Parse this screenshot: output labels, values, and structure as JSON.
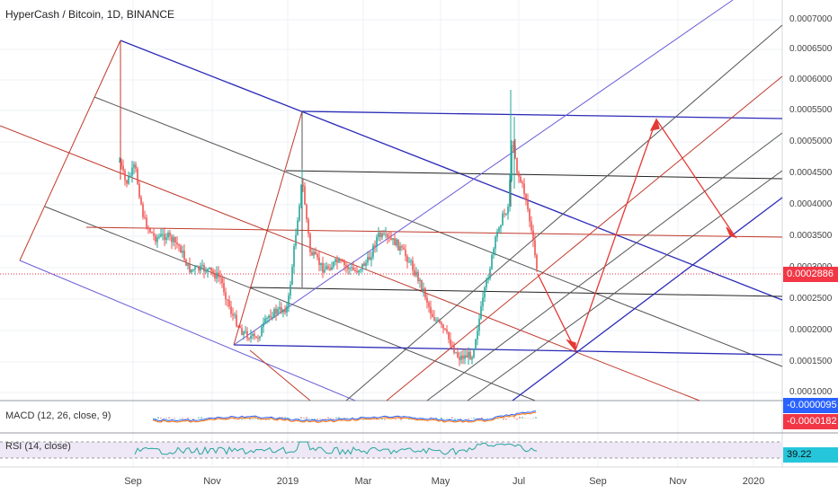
{
  "header": {
    "title": "HyperCash / Bitcoin, 1D, BINANCE"
  },
  "price_axis": {
    "ticks": [
      "0.0007000",
      "0.0006500",
      "0.0006000",
      "0.0005500",
      "0.0005000",
      "0.0004500",
      "0.0004000",
      "0.0003500",
      "0.0003000",
      "0.0002500",
      "0.0002000",
      "0.0001500",
      "0.0001000"
    ],
    "last_price": "0.0002886",
    "last_price_color": "#f23645"
  },
  "time_axis": {
    "ticks": [
      "Sep",
      "Nov",
      "2019",
      "Mar",
      "May",
      "Jul",
      "Sep",
      "Nov",
      "2020"
    ]
  },
  "macd": {
    "label": "MACD (12, 26, close, 9)",
    "value1": "-0.0000095",
    "value2": "-0.0000182",
    "color1": "#2962ff",
    "color2": "#f23645"
  },
  "rsi": {
    "label": "RSI (14, close)",
    "value": "39.22",
    "color": "#26c6da"
  },
  "chart_data": {
    "type": "candlestick",
    "title": "HyperCash / Bitcoin, 1D, BINANCE",
    "x_ticks": [
      "Sep",
      "Nov",
      "2019",
      "Mar",
      "May",
      "Jul",
      "Sep",
      "Nov",
      "2020"
    ],
    "y_range": [
      0.0001,
      0.0007
    ],
    "last_price": 0.0002886,
    "key_levels": [
      0.000671,
      0.000553,
      0.000174,
      0.000147,
      0.000591,
      0.000289
    ]
  }
}
